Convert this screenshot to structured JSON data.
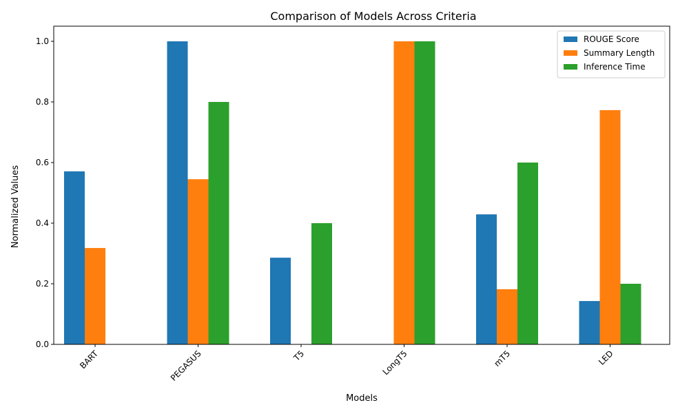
{
  "chart_data": {
    "type": "bar",
    "title": "Comparison of Models Across Criteria",
    "xlabel": "Models",
    "ylabel": "Normalized Values",
    "categories": [
      "BART",
      "PEGASUS",
      "T5",
      "LongT5",
      "mT5",
      "LED"
    ],
    "series": [
      {
        "name": "ROUGE Score",
        "color": "#1f77b4",
        "values": [
          0.571,
          1.0,
          0.286,
          0.0,
          0.429,
          0.143
        ]
      },
      {
        "name": "Summary Length",
        "color": "#ff7f0e",
        "values": [
          0.318,
          0.545,
          0.0,
          1.0,
          0.182,
          0.773
        ]
      },
      {
        "name": "Inference Time",
        "color": "#2ca02c",
        "values": [
          0.0,
          0.8,
          0.4,
          1.0,
          0.6,
          0.2
        ]
      }
    ],
    "ylim": [
      0,
      1.05
    ],
    "yticks": [
      "0.0",
      "0.2",
      "0.4",
      "0.6",
      "0.8",
      "1.0"
    ],
    "ytick_values": [
      0,
      0.2,
      0.4,
      0.6,
      0.8,
      1.0
    ],
    "grid": false,
    "legend_position": "top-right"
  }
}
